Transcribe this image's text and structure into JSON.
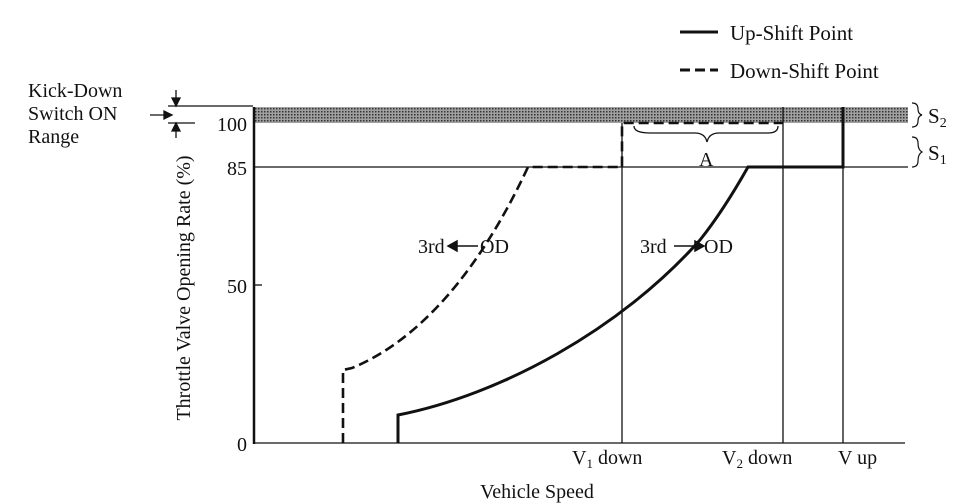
{
  "legend": {
    "up_shift": "Up-Shift Point",
    "down_shift": "Down-Shift Point"
  },
  "y_axis": {
    "label": "Throttle Valve Opening Rate (%)",
    "ticks": [
      "100",
      "85",
      "50",
      "0"
    ]
  },
  "x_axis": {
    "label": "Vehicle Speed",
    "ticks": {
      "v1_sub": "1",
      "v1": "V",
      "v1_rest": " down",
      "v2": "V",
      "v2_sub": "2",
      "v2_rest": " down",
      "vup": "V up"
    }
  },
  "kickdown": {
    "line1": "Kick-Down",
    "line2": "Switch ON",
    "line3": "Range"
  },
  "annotations": {
    "a": "A",
    "s2": "S",
    "s2_sub": "2",
    "s1": "S",
    "s1_sub": "1",
    "down_from": "3rd",
    "down_to": "OD",
    "up_from": "3rd",
    "up_to": "OD"
  },
  "colors": {
    "ink": "#111111",
    "band": "#8a8a8a"
  }
}
